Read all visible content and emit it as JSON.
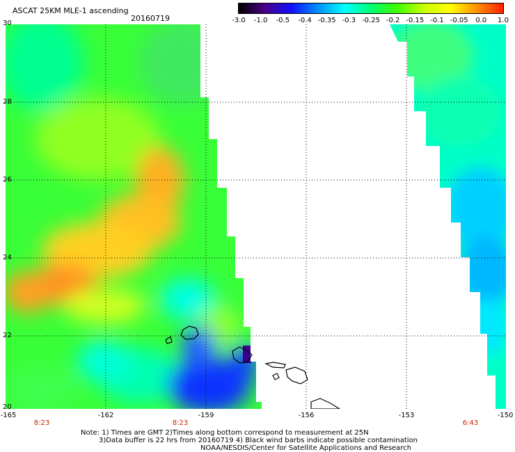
{
  "header": {
    "title": "ASCAT 25KM MLE-1 ascending",
    "date": "20160719"
  },
  "colorbar": {
    "stops": [
      "#000000",
      "#4a0088",
      "#1010ff",
      "#0090ff",
      "#00ffff",
      "#00ff70",
      "#40ff00",
      "#c8ff00",
      "#ffff00",
      "#ff9000",
      "#ff2000"
    ],
    "ticks": [
      "-3.0",
      "-1.0",
      "-0.5",
      "-0.4",
      "-0.35",
      "-0.3",
      "-0.25",
      "-0.2",
      "-0.15",
      "-0.1",
      "-0.05",
      "0.0",
      "1.0"
    ]
  },
  "map": {
    "lat_labels": [
      "30",
      "28",
      "26",
      "24",
      "22",
      "20"
    ],
    "lon_labels": [
      "-165",
      "-162",
      "-159",
      "-156",
      "-153",
      "-150"
    ],
    "time_labels": [
      "8:23",
      "8:23",
      "6:43"
    ]
  },
  "footer": {
    "line1": "Note: 1) Times are GMT 2)Times along bottom correspond to measurement at 25N",
    "line2": "3)Data buffer is 22 hrs from 20160719 4) Black wind barbs indicate possible contamination",
    "line3": "NOAA/NESDIS/Center for Satellite Applications and Research"
  }
}
